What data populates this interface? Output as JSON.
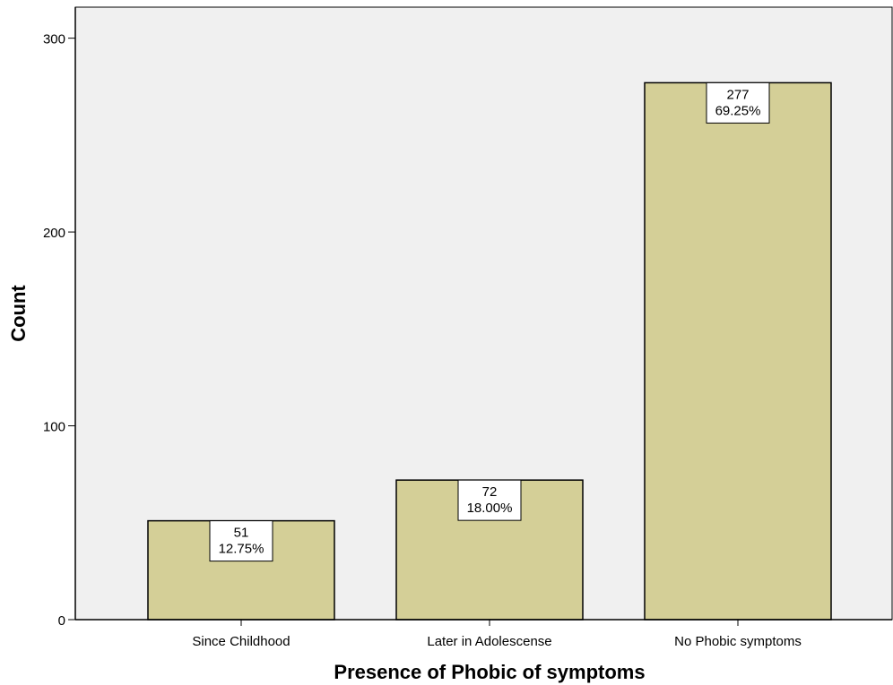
{
  "chart_data": {
    "type": "bar",
    "categories": [
      "Since Childhood",
      "Later in Adolescense",
      "No Phobic symptoms"
    ],
    "values": [
      51,
      72,
      277
    ],
    "data_labels": [
      {
        "count": "51",
        "percent": "12.75%"
      },
      {
        "count": "72",
        "percent": "18.00%"
      },
      {
        "count": "277",
        "percent": "69.25%"
      }
    ],
    "title": "",
    "xlabel": "Presence of Phobic of symptoms",
    "ylabel": "Count",
    "ylim": [
      0,
      316
    ],
    "yticks": [
      0,
      100,
      200,
      300
    ],
    "grid": false,
    "colors": {
      "plot_background": "#f0f0f0",
      "bar_fill": "#d4cf97",
      "bar_stroke": "#000000",
      "label_box": "#ffffff"
    }
  }
}
